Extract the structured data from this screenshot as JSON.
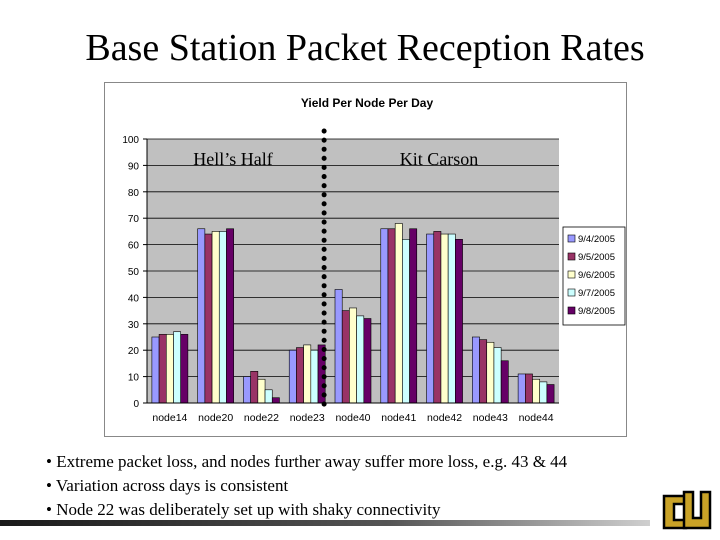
{
  "slide": {
    "title": "Base Station Packet Reception Rates",
    "bullets": [
      "• Extreme packet loss, and nodes further away suffer more loss, e.g. 43 & 44",
      "• Variation across days is consistent",
      "• Node 22 was deliberately set up with shaky connectivity"
    ],
    "logo": "cu-logo-icon"
  },
  "chart_data": {
    "type": "bar",
    "title": "Yield Per Node Per Day",
    "categories": [
      "node14",
      "node20",
      "node22",
      "node23",
      "node40",
      "node41",
      "node42",
      "node43",
      "node44"
    ],
    "series": [
      {
        "name": "9/4/2005",
        "values": [
          25,
          66,
          10,
          20,
          43,
          66,
          64,
          25,
          11
        ]
      },
      {
        "name": "9/5/2005",
        "values": [
          26,
          64,
          12,
          21,
          35,
          66,
          65,
          24,
          11
        ]
      },
      {
        "name": "9/6/2005",
        "values": [
          26,
          65,
          9,
          22,
          36,
          68,
          64,
          23,
          9
        ]
      },
      {
        "name": "9/7/2005",
        "values": [
          27,
          65,
          5,
          20,
          33,
          62,
          64,
          21,
          8
        ]
      },
      {
        "name": "9/8/2005",
        "values": [
          26,
          66,
          2,
          22,
          32,
          66,
          62,
          16,
          7
        ]
      }
    ],
    "colors": [
      "#9999ff",
      "#993366",
      "#ffffcc",
      "#ccffff",
      "#660066"
    ],
    "ylim": [
      0,
      100
    ],
    "yticks": [
      0,
      10,
      20,
      30,
      40,
      50,
      60,
      70,
      80,
      90,
      100
    ],
    "grid": true,
    "legend": "right",
    "plot_background": "#c0c0c0",
    "annotations": [
      {
        "text": "Hell’s Half",
        "region": "left"
      },
      {
        "text": "Kit Carson",
        "region": "right"
      }
    ],
    "divider": {
      "style": "dotted",
      "between": [
        "node23",
        "node40"
      ]
    }
  }
}
